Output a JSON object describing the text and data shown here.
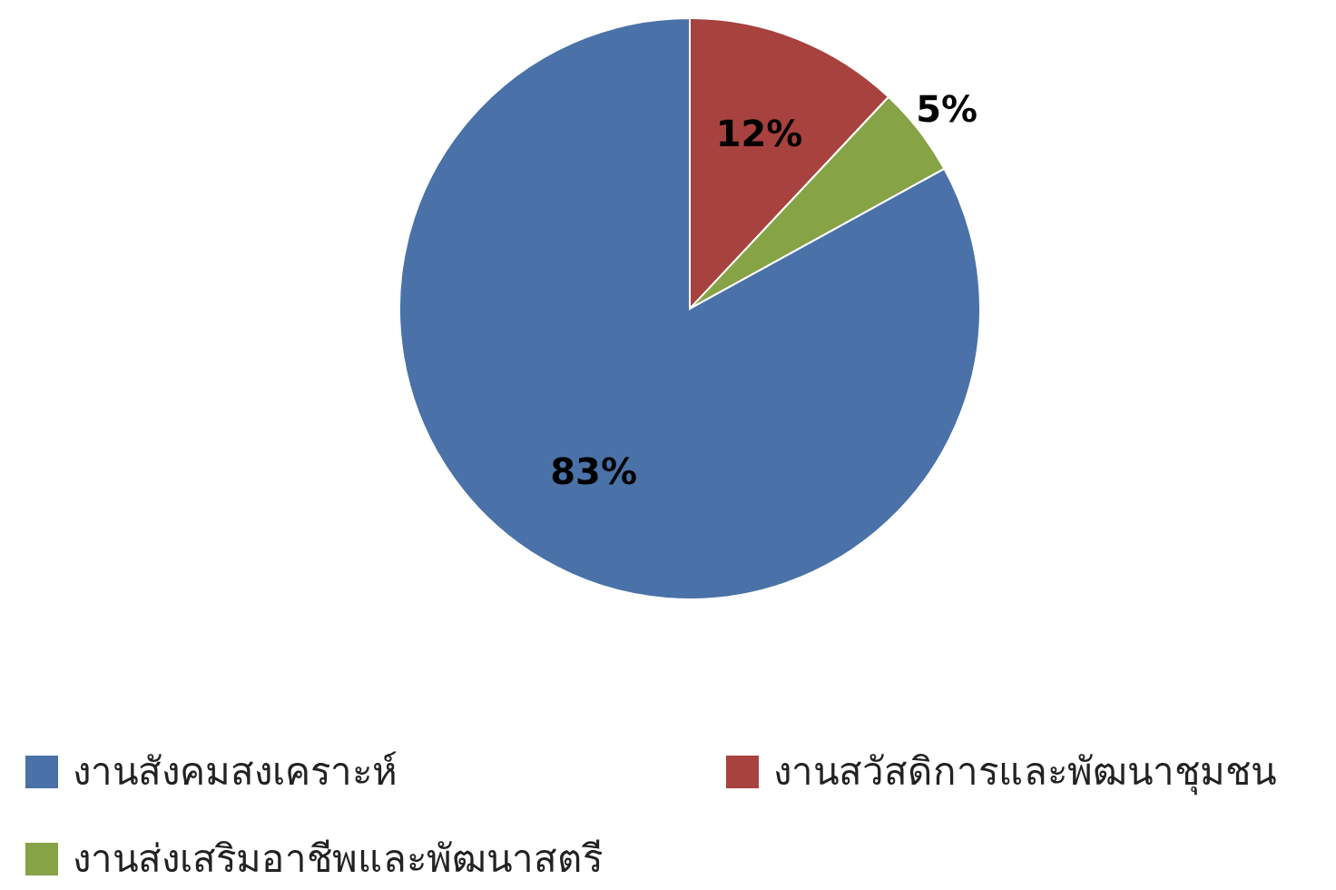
{
  "chart_data": {
    "type": "pie",
    "categories": [
      "งานสังคมสงเคราะห์",
      "งานสวัสดิการและพัฒนาชุมชน",
      "งานส่งเสริมอาชีพและพัฒนาสตรี"
    ],
    "values": [
      83,
      12,
      5
    ],
    "value_labels": [
      "83%",
      "12%",
      "5%"
    ],
    "colors": [
      "#4a72a8",
      "#a8423f",
      "#86a346"
    ],
    "legend": "bottom"
  }
}
